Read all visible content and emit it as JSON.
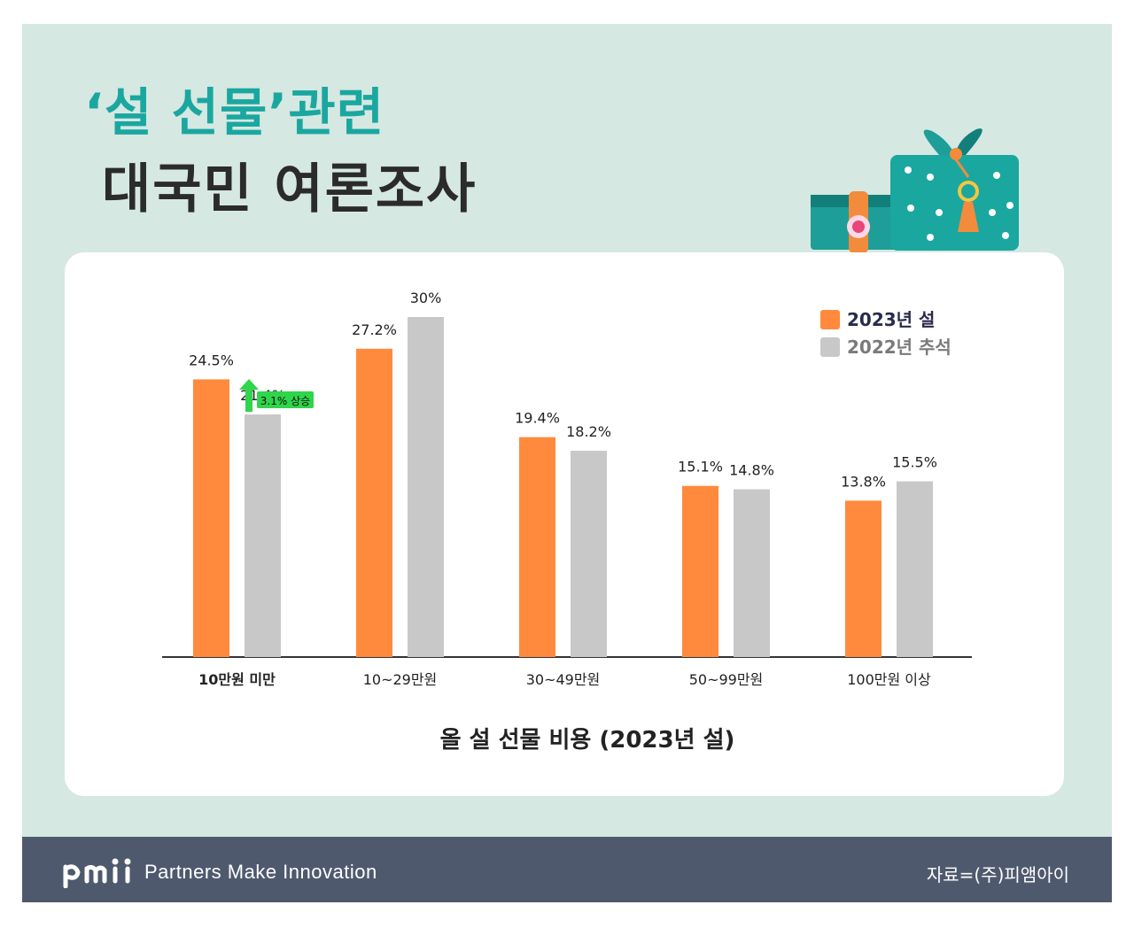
{
  "header": {
    "title_line1": "‘설 선물’관련",
    "title_line2": "대국민 여론조사"
  },
  "colors": {
    "background": "#d5e8e1",
    "title_accent": "#1aa7a0",
    "series_2023": "#ff8a3d",
    "series_2022": "#c8c8c8",
    "callout": "#2fd54a",
    "footer": "#4f596e"
  },
  "icons": {
    "gift": "gift-bundle-icon",
    "logo": "pmi-logo"
  },
  "chart_data": {
    "type": "bar",
    "title": "",
    "xlabel": "올 설 선물 비용 (2023년 설)",
    "ylabel": "",
    "categories": [
      "10만원 미만",
      "10~29만원",
      "30~49만원",
      "50~99만원",
      "100만원 이상"
    ],
    "series": [
      {
        "name": "2023년 설",
        "values": [
          24.5,
          27.2,
          19.4,
          15.1,
          13.8
        ],
        "labels": [
          "24.5%",
          "27.2%",
          "19.4%",
          "15.1%",
          "13.8%"
        ]
      },
      {
        "name": "2022년 추석",
        "values": [
          21.4,
          30,
          18.2,
          14.8,
          15.5
        ],
        "labels": [
          "21.4%",
          "30%",
          "18.2%",
          "14.8%",
          "15.5%"
        ]
      }
    ],
    "ylim": [
      0,
      30
    ],
    "grid": false,
    "legend_position": "top-right",
    "annotation": {
      "text": "3.1% 상승",
      "category": "10만원 미만"
    }
  },
  "footer": {
    "tagline": "Partners Make Innovation",
    "source": "자료=(주)피앰아이"
  }
}
